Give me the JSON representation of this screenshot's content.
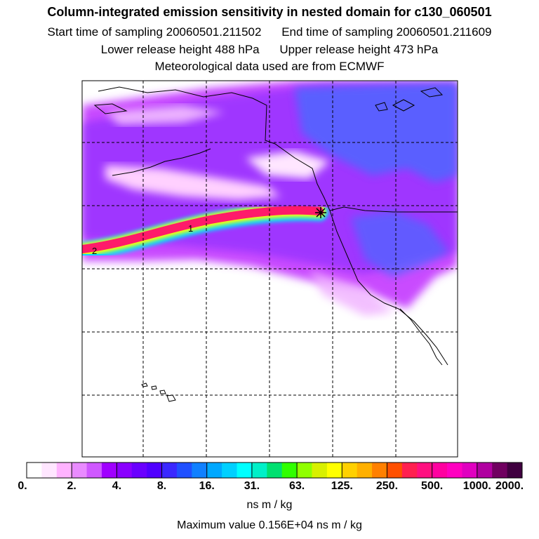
{
  "header": {
    "title": "Column-integrated emission sensitivity in nested domain for c130_060501",
    "start_sampling": "Start time of sampling 20060501.211502",
    "end_sampling": "End time of sampling 20060501.211609",
    "lower_release": "Lower release height  488 hPa",
    "upper_release": "Upper release height  473 hPa",
    "met_data": "Meteorological data used are from ECMWF"
  },
  "map": {
    "trajectory_labels": [
      "1",
      "2"
    ],
    "release_marker": "star-marker-icon"
  },
  "colorbar": {
    "ticks": [
      "0.",
      "2.",
      "4.",
      "8.",
      "16.",
      "31.",
      "63.",
      "125.",
      "250.",
      "500.",
      "1000.",
      "2000."
    ],
    "colors": [
      "#ffffff",
      "#ffe6ff",
      "#ffb3ff",
      "#e98bff",
      "#cf58ff",
      "#a000ff",
      "#8a00ff",
      "#6a00ff",
      "#5000ff",
      "#3a28ff",
      "#2050ff",
      "#1080ff",
      "#00a8ff",
      "#00d0ff",
      "#00ffff",
      "#00f0c8",
      "#00e070",
      "#30ff00",
      "#90ff00",
      "#d8f000",
      "#ffff00",
      "#ffd000",
      "#ffb000",
      "#ff8000",
      "#ff5000",
      "#ff2050",
      "#ff1080",
      "#ff00a0",
      "#ff00c0",
      "#e000c0",
      "#b000a0",
      "#700060",
      "#400040"
    ],
    "units": "ns m / kg"
  },
  "footer": {
    "max_value": "Maximum value  0.156E+04 ns m / kg"
  }
}
